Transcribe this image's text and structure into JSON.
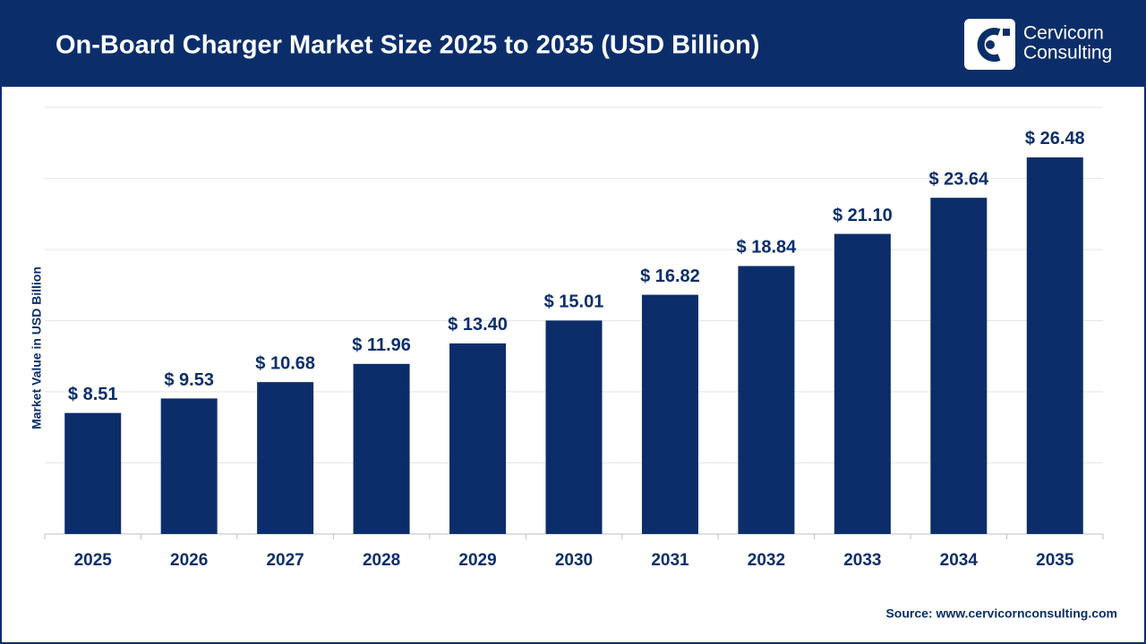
{
  "header": {
    "brand": [
      "Cervicorn",
      "Consulting"
    ]
  },
  "chart_data": {
    "type": "bar",
    "title": "On-Board Charger Market Size 2025 to 2035 (USD Billion)",
    "y_label": "Market Value in USD Billion",
    "source": "Source: www.cervicornconsulting.com",
    "categories": [
      "2025",
      "2026",
      "2027",
      "2028",
      "2029",
      "2030",
      "2031",
      "2032",
      "2033",
      "2034",
      "2035"
    ],
    "values": [
      8.51,
      9.53,
      10.68,
      11.96,
      13.4,
      15.01,
      16.82,
      18.84,
      21.1,
      23.64,
      26.48
    ],
    "value_labels": [
      "$ 8.51",
      "$ 9.53",
      "$ 10.68",
      "$ 11.96",
      "$ 13.40",
      "$ 15.01",
      "$ 16.82",
      "$ 18.84",
      "$ 21.10",
      "$ 23.64",
      "$ 26.48"
    ],
    "color": "#0b2e6b",
    "ylim": [
      0,
      30
    ],
    "yticks": [
      0,
      5,
      10,
      15,
      20,
      25,
      30
    ],
    "grid": true
  }
}
